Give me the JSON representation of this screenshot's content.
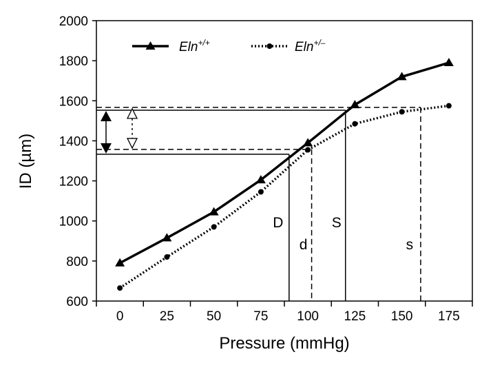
{
  "chart_data": {
    "type": "line",
    "title": "",
    "xlabel": "Pressure (mmHg)",
    "ylabel": "ID (µm)",
    "x": [
      0,
      25,
      50,
      75,
      100,
      125,
      150,
      175
    ],
    "x_tick_labels": [
      "0",
      "25",
      "50",
      "75",
      "100",
      "125",
      "150",
      "175"
    ],
    "y_tick_labels": [
      "600",
      "800",
      "1000",
      "1200",
      "1400",
      "1600",
      "1800",
      "2000"
    ],
    "y_ticks": [
      600,
      800,
      1000,
      1200,
      1400,
      1600,
      1800,
      2000
    ],
    "ylim": [
      600,
      2000
    ],
    "grid": false,
    "legend_position": "top-left",
    "series": [
      {
        "name": "Eln",
        "sup": "+/+",
        "marker": "triangle",
        "style": "solid",
        "values": [
          790,
          915,
          1045,
          1205,
          1390,
          1580,
          1720,
          1790
        ]
      },
      {
        "name": "Eln",
        "sup": "+/–",
        "marker": "circle",
        "style": "dotted",
        "values": [
          665,
          820,
          970,
          1145,
          1355,
          1485,
          1545,
          1575
        ]
      }
    ],
    "annotations": {
      "vertical_lines": [
        {
          "label": "D",
          "x": 90,
          "style": "solid",
          "y_top": 1333
        },
        {
          "label": "d",
          "x": 102,
          "style": "dashed",
          "y_top": 1357
        },
        {
          "label": "S",
          "x": 120,
          "style": "solid",
          "y_top": 1553
        },
        {
          "label": "s",
          "x": 160,
          "style": "dashed",
          "y_top": 1567
        }
      ],
      "horizontal_lines": [
        {
          "y": 1553,
          "x_end": 120,
          "style": "solid"
        },
        {
          "y": 1333,
          "x_end": 90,
          "style": "solid"
        },
        {
          "y": 1567,
          "x_end": 160,
          "style": "dashed"
        },
        {
          "y": 1357,
          "x_end": 102,
          "style": "dashed"
        }
      ],
      "arrows": [
        {
          "style": "solid-filled",
          "from": 1333,
          "to": 1553
        },
        {
          "style": "dashed-open",
          "from": 1357,
          "to": 1567
        }
      ]
    }
  }
}
